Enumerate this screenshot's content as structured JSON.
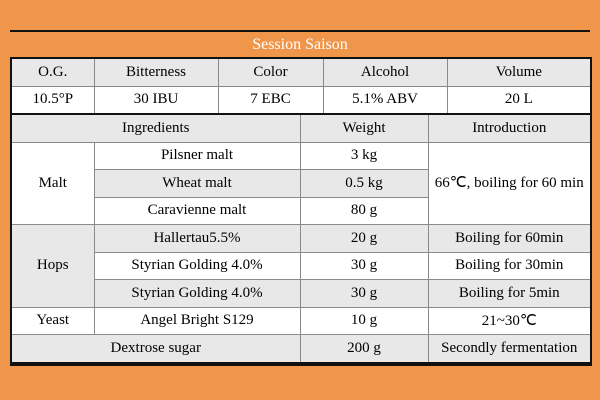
{
  "title": "Session Saison",
  "colors": {
    "page_bg": "#F0964B",
    "frame": "#111111",
    "grid": "#8a8a8a",
    "row_gray": "#E8E8E8",
    "row_white": "#FFFFFF",
    "title_text": "#FFFFFF",
    "cell_text": "#000000"
  },
  "table": {
    "columns": [
      83,
      124,
      82,
      23,
      105,
      19,
      144
    ],
    "rows": [
      {
        "bg": "gray",
        "cells": [
          {
            "text": "O.G.",
            "role": "stat-header"
          },
          {
            "text": "Bitterness",
            "role": "stat-header"
          },
          {
            "text": "Color",
            "colspan": 2,
            "role": "stat-header"
          },
          {
            "text": "Alcohol",
            "colspan": 2,
            "role": "stat-header"
          },
          {
            "text": "Volume",
            "role": "stat-header"
          }
        ]
      },
      {
        "bg": "white",
        "cells": [
          {
            "text": "10.5°P",
            "role": "stat-value"
          },
          {
            "text": "30 IBU",
            "role": "stat-value"
          },
          {
            "text": "7 EBC",
            "colspan": 2,
            "role": "stat-value"
          },
          {
            "text": "5.1% ABV",
            "colspan": 2,
            "role": "stat-value"
          },
          {
            "text": "20 L",
            "role": "stat-value"
          }
        ]
      },
      {
        "bg": "gray",
        "divider": true,
        "cells": [
          {
            "text": "Ingredients",
            "colspan": 3,
            "role": "column-header"
          },
          {
            "text": "Weight",
            "colspan": 2,
            "role": "column-header"
          },
          {
            "text": "Introduction",
            "colspan": 2,
            "role": "column-header"
          }
        ]
      },
      {
        "bg": "white",
        "cells": [
          {
            "text": "Malt",
            "rowspan": 3,
            "bg": "white",
            "role": "category"
          },
          {
            "text": "Pilsner malt",
            "colspan": 2,
            "role": "ingredient"
          },
          {
            "text": "3 kg",
            "colspan": 2,
            "role": "weight"
          },
          {
            "text": "66℃, boiling for 60 min",
            "colspan": 2,
            "rowspan": 3,
            "bg": "white",
            "align": "left",
            "wrap": true,
            "role": "introduction"
          }
        ]
      },
      {
        "bg": "gray",
        "cells": [
          {
            "text": "Wheat malt",
            "colspan": 2,
            "role": "ingredient"
          },
          {
            "text": "0.5 kg",
            "colspan": 2,
            "role": "weight"
          }
        ]
      },
      {
        "bg": "white",
        "cells": [
          {
            "text": "Caravienne malt",
            "colspan": 2,
            "role": "ingredient"
          },
          {
            "text": "80 g",
            "colspan": 2,
            "role": "weight"
          }
        ]
      },
      {
        "bg": "gray",
        "cells": [
          {
            "text": "Hops",
            "rowspan": 3,
            "bg": "gray",
            "role": "category"
          },
          {
            "text": "Hallertau5.5%",
            "colspan": 2,
            "role": "ingredient"
          },
          {
            "text": "20 g",
            "colspan": 2,
            "role": "weight"
          },
          {
            "text": "Boiling for 60min",
            "colspan": 2,
            "align": "left",
            "role": "introduction"
          }
        ]
      },
      {
        "bg": "white",
        "cells": [
          {
            "text": "Styrian Golding 4.0%",
            "colspan": 2,
            "role": "ingredient"
          },
          {
            "text": "30 g",
            "colspan": 2,
            "role": "weight"
          },
          {
            "text": "Boiling for 30min",
            "colspan": 2,
            "align": "left",
            "role": "introduction"
          }
        ]
      },
      {
        "bg": "gray",
        "cells": [
          {
            "text": "Styrian Golding 4.0%",
            "colspan": 2,
            "role": "ingredient"
          },
          {
            "text": "30 g",
            "colspan": 2,
            "role": "weight"
          },
          {
            "text": "Boiling for 5min",
            "colspan": 2,
            "align": "left",
            "role": "introduction"
          }
        ]
      },
      {
        "bg": "white",
        "cells": [
          {
            "text": "Yeast",
            "role": "category"
          },
          {
            "text": "Angel Bright S129",
            "colspan": 2,
            "role": "ingredient"
          },
          {
            "text": "10 g",
            "colspan": 2,
            "role": "weight"
          },
          {
            "text": "21~30℃",
            "colspan": 2,
            "align": "left",
            "role": "introduction"
          }
        ]
      },
      {
        "bg": "gray",
        "cells": [
          {
            "text": "Dextrose sugar",
            "colspan": 3,
            "role": "ingredient"
          },
          {
            "text": "200 g",
            "colspan": 2,
            "role": "weight"
          },
          {
            "text": "Secondly fermentation",
            "colspan": 2,
            "align": "left",
            "role": "introduction"
          }
        ]
      }
    ]
  }
}
